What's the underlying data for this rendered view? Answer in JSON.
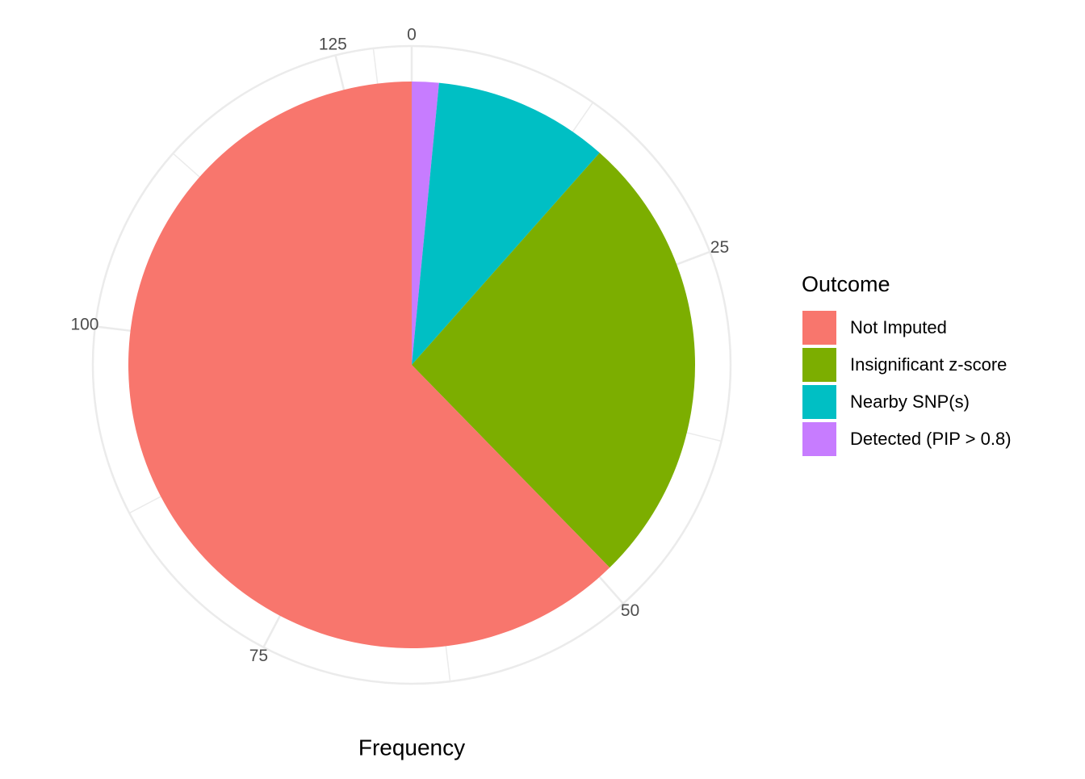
{
  "chart_data": {
    "type": "pie",
    "x_label": "Frequency",
    "legend_title": "Outcome",
    "categories": [
      "Not Imputed",
      "Insignificant z-score",
      "Nearby SNP(s)",
      "Detected (PIP > 0.8)"
    ],
    "values": [
      81,
      34,
      13,
      2
    ],
    "colors": [
      "#f8766d",
      "#7cae00",
      "#00bfc4",
      "#c77cff"
    ],
    "xlim": [
      0,
      130
    ],
    "xticks": [
      0,
      25,
      50,
      75,
      100,
      125
    ],
    "grid": true
  }
}
